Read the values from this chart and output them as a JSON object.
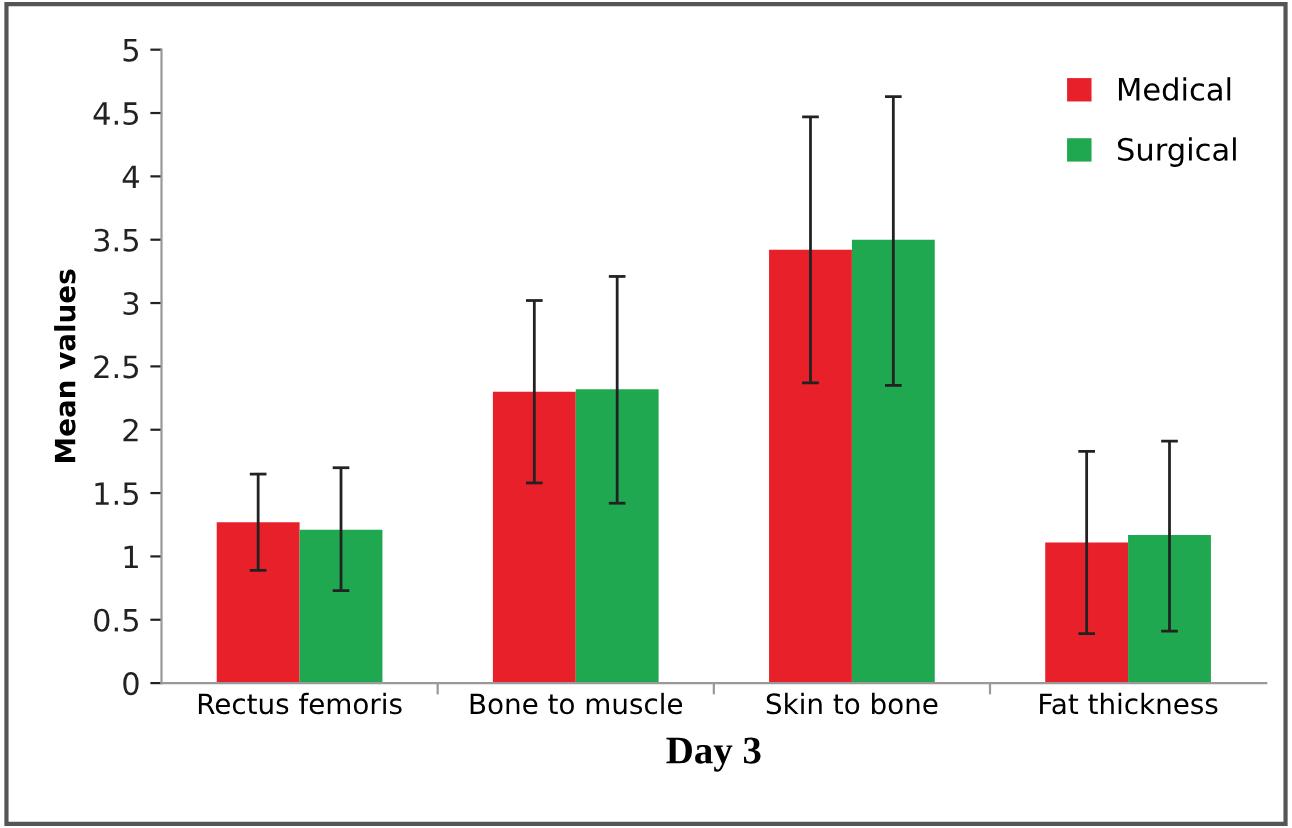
{
  "chart_data": {
    "type": "bar",
    "xlabel": "Day 3",
    "ylabel": "Mean values",
    "categories": [
      "Rectus femoris",
      "Bone to muscle",
      "Skin to bone",
      "Fat thickness"
    ],
    "series": [
      {
        "name": "Medical",
        "color": "#e8202a",
        "values": [
          1.27,
          2.3,
          3.42,
          1.11
        ],
        "errors": [
          [
            0.89,
            1.65
          ],
          [
            1.58,
            3.02
          ],
          [
            2.37,
            4.47
          ],
          [
            0.39,
            1.83
          ]
        ]
      },
      {
        "name": "Surgical",
        "color": "#1fa84f",
        "values": [
          1.21,
          2.32,
          3.5,
          1.17
        ],
        "errors": [
          [
            0.73,
            1.7
          ],
          [
            1.42,
            3.21
          ],
          [
            2.35,
            4.63
          ],
          [
            0.41,
            1.91
          ]
        ]
      }
    ],
    "ylim": [
      0,
      5
    ],
    "yticks": [
      0,
      0.5,
      1,
      1.5,
      2,
      2.5,
      3,
      3.5,
      4,
      4.5,
      5
    ],
    "grid": false,
    "legend": "top right"
  }
}
